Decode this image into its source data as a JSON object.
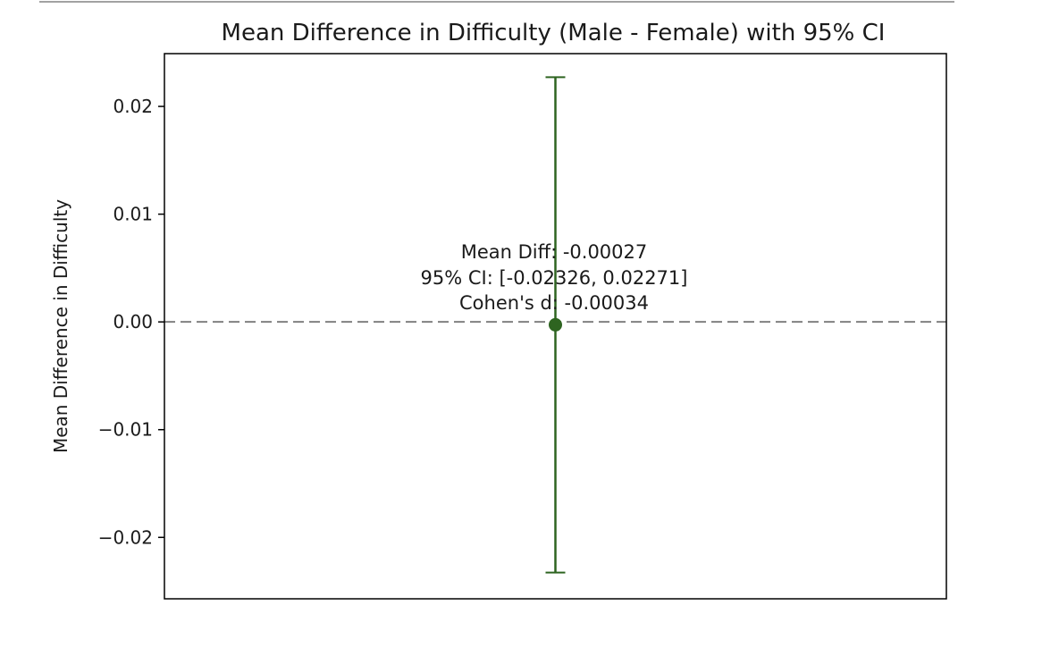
{
  "chart_data": {
    "type": "scatter",
    "title": "Mean Difference in Difficulty (Male - Female) with 95% CI",
    "xlabel": "",
    "ylabel": "Mean Difference in Difficulty",
    "ylim": [
      -0.0257,
      0.0249
    ],
    "yticks": [
      0.02,
      0.01,
      0.0,
      -0.01,
      -0.02
    ],
    "ytick_labels": [
      "0.02",
      "0.01",
      "0.00",
      "−0.01",
      "−0.02"
    ],
    "reference_line": {
      "y": 0.0,
      "style": "dashed",
      "color": "#808080"
    },
    "points": [
      {
        "y": -0.00027,
        "ci_low": -0.02326,
        "ci_high": 0.02271
      }
    ],
    "point_color": "#2e6420",
    "annotation": [
      "Mean Diff: -0.00027",
      "95% CI: [-0.02326, 0.02271]",
      "Cohen's d: -0.00034"
    ],
    "grid": false,
    "legend": "none"
  }
}
